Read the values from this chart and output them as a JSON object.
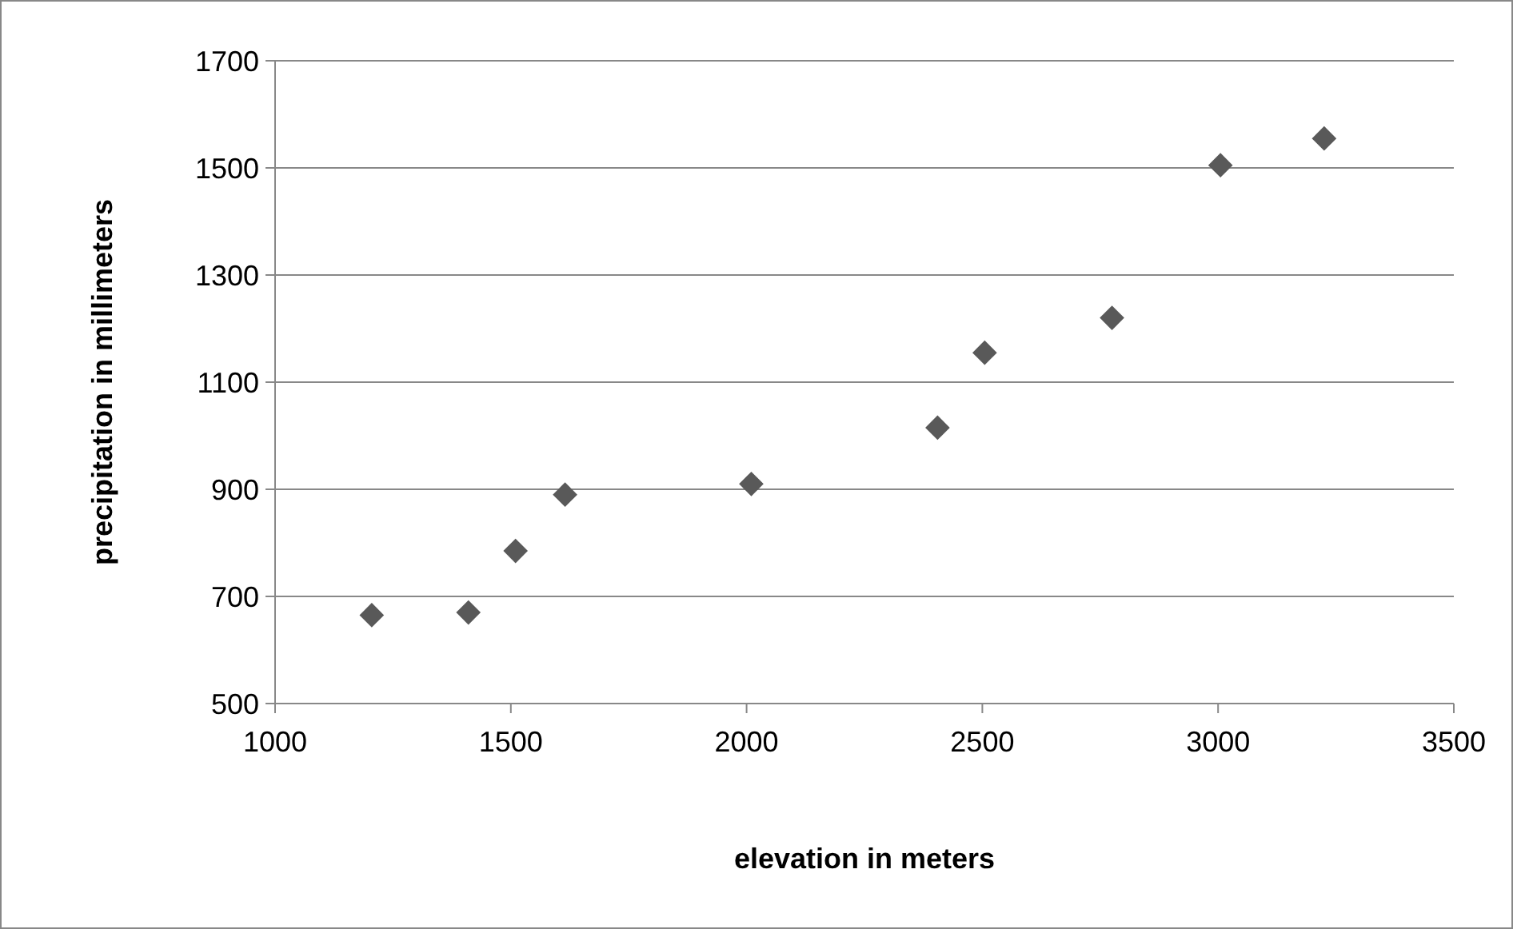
{
  "chart_data": {
    "type": "scatter",
    "xlabel": "elevation in meters",
    "ylabel": "precipitation in millimeters",
    "x": [
      1205,
      1410,
      1510,
      1615,
      2010,
      2405,
      2505,
      2775,
      3005,
      3225
    ],
    "series": [
      {
        "color": "#595959",
        "values": [
          665,
          670,
          785,
          890,
          910,
          1015,
          1155,
          1220,
          1505,
          1555
        ]
      }
    ],
    "xlim": [
      1000,
      3500
    ],
    "xticks": [
      1000,
      1500,
      2000,
      2500,
      3000,
      3500
    ],
    "ylim": [
      500,
      1700
    ],
    "yticks": [
      500,
      700,
      900,
      1100,
      1300,
      1500,
      1700
    ],
    "grid": "y",
    "marker": "diamond"
  }
}
